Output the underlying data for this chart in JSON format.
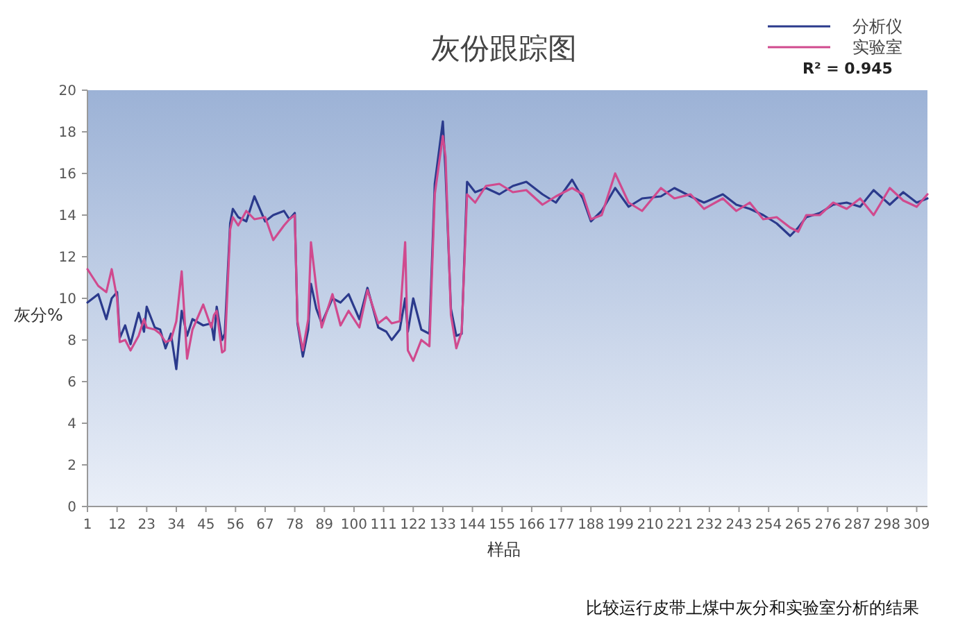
{
  "chart_data": {
    "type": "line",
    "title": "灰份跟踪图",
    "xlabel": "样品",
    "ylabel": "灰分%",
    "x": [
      1,
      5,
      8,
      10,
      12,
      13,
      15,
      17,
      20,
      22,
      23,
      26,
      28,
      30,
      32,
      34,
      36,
      38,
      40,
      44,
      47,
      48,
      49,
      51,
      52,
      54,
      55,
      57,
      60,
      63,
      67,
      70,
      74,
      76,
      78,
      79,
      81,
      83,
      84,
      86,
      88,
      92,
      95,
      98,
      102,
      105,
      109,
      112,
      114,
      117,
      119,
      120,
      122,
      125,
      128,
      130,
      133,
      134,
      136,
      138,
      140,
      142,
      145,
      149,
      154,
      159,
      164,
      170,
      175,
      181,
      185,
      188,
      192,
      197,
      202,
      207,
      214,
      219,
      225,
      230,
      237,
      242,
      247,
      252,
      257,
      262,
      265,
      268,
      273,
      278,
      283,
      288,
      293,
      299,
      304,
      309,
      313
    ],
    "series": [
      {
        "name": "分析仪",
        "color": "#2b3a8c",
        "values": [
          9.8,
          10.2,
          9.0,
          10.0,
          10.3,
          8.1,
          8.7,
          7.8,
          9.3,
          8.4,
          9.6,
          8.6,
          8.5,
          7.6,
          8.3,
          6.6,
          9.4,
          8.2,
          9.0,
          8.7,
          8.8,
          8.0,
          9.6,
          8.0,
          8.3,
          13.6,
          14.3,
          13.9,
          13.7,
          14.9,
          13.7,
          14.0,
          14.2,
          13.8,
          14.1,
          8.8,
          7.2,
          8.5,
          10.7,
          9.5,
          8.8,
          10.0,
          9.8,
          10.2,
          9.0,
          10.5,
          8.6,
          8.4,
          8.0,
          8.5,
          10.0,
          8.4,
          10.0,
          8.5,
          8.3,
          15.5,
          18.5,
          16.1,
          9.5,
          8.2,
          8.3,
          15.6,
          15.1,
          15.3,
          15.0,
          15.4,
          15.6,
          15.0,
          14.6,
          15.7,
          14.8,
          13.7,
          14.2,
          15.3,
          14.4,
          14.8,
          14.9,
          15.3,
          14.9,
          14.6,
          15.0,
          14.5,
          14.3,
          14.0,
          13.6,
          13.0,
          13.4,
          13.9,
          14.1,
          14.5,
          14.6,
          14.4,
          15.2,
          14.5,
          15.1,
          14.6,
          14.8
        ]
      },
      {
        "name": "实验室",
        "color": "#d04a8e",
        "values": [
          11.4,
          10.6,
          10.3,
          11.4,
          10.0,
          7.9,
          8.0,
          7.5,
          8.2,
          9.0,
          8.6,
          8.5,
          8.3,
          7.9,
          8.0,
          8.9,
          11.3,
          7.1,
          8.5,
          9.7,
          8.6,
          9.2,
          9.4,
          7.4,
          7.5,
          13.3,
          13.9,
          13.5,
          14.2,
          13.8,
          13.9,
          12.8,
          13.5,
          13.8,
          14.0,
          8.9,
          7.5,
          9.0,
          12.7,
          10.5,
          8.6,
          10.2,
          8.7,
          9.4,
          8.6,
          10.4,
          8.8,
          9.1,
          8.8,
          8.9,
          12.7,
          7.5,
          7.0,
          8.0,
          7.7,
          15.0,
          17.8,
          16.8,
          9.2,
          7.6,
          8.4,
          15.0,
          14.6,
          15.4,
          15.5,
          15.1,
          15.2,
          14.5,
          14.9,
          15.3,
          15.0,
          13.8,
          14.0,
          16.0,
          14.6,
          14.2,
          15.3,
          14.8,
          15.0,
          14.3,
          14.8,
          14.2,
          14.6,
          13.8,
          13.9,
          13.4,
          13.2,
          14.0,
          14.0,
          14.6,
          14.3,
          14.8,
          14.0,
          15.3,
          14.7,
          14.4,
          15.0
        ]
      }
    ],
    "xlim": [
      1,
      313
    ],
    "xticks": [
      1,
      12,
      23,
      34,
      45,
      56,
      67,
      78,
      89,
      100,
      111,
      122,
      133,
      144,
      155,
      166,
      177,
      188,
      199,
      210,
      221,
      232,
      243,
      254,
      265,
      276,
      287,
      298,
      309
    ],
    "ylim": [
      0,
      20
    ],
    "yticks": [
      0,
      2,
      4,
      6,
      8,
      10,
      12,
      14,
      16,
      18,
      20
    ],
    "legend": "top right",
    "grid": false,
    "annotations": [
      "R² = 0.945",
      "比较运行皮带上煤中灰分和实验室分析的结果"
    ]
  }
}
